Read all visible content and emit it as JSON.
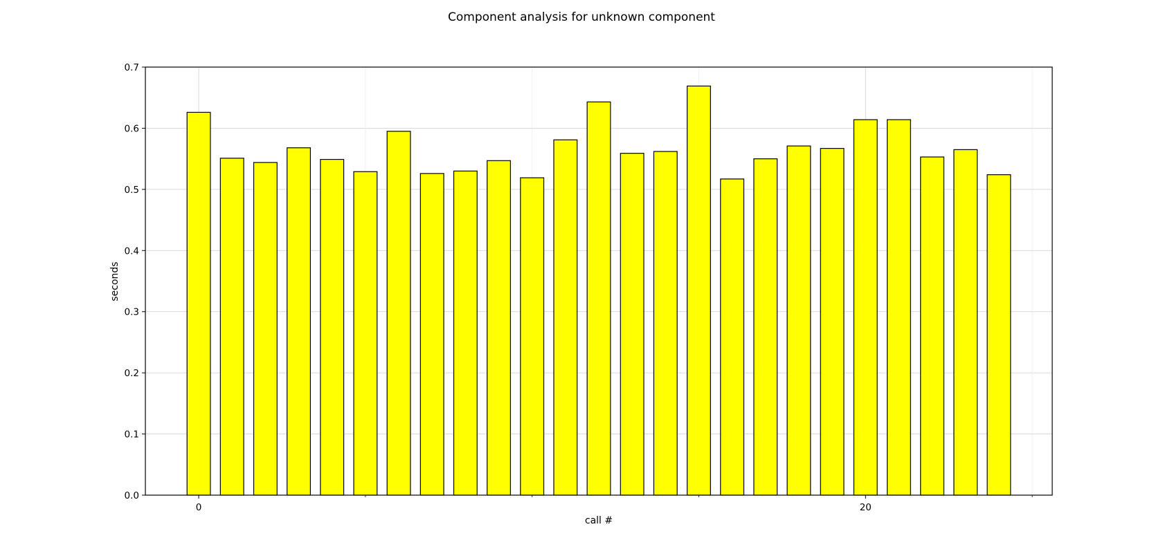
{
  "chart_data": {
    "type": "bar",
    "title": "Component analysis for unknown component",
    "xlabel": "call #",
    "ylabel": "seconds",
    "x": [
      0,
      1,
      2,
      3,
      4,
      5,
      6,
      7,
      8,
      9,
      10,
      11,
      12,
      13,
      14,
      15,
      16,
      17,
      18,
      19,
      20,
      21,
      22,
      23,
      24
    ],
    "values": [
      0.626,
      0.551,
      0.544,
      0.568,
      0.549,
      0.529,
      0.595,
      0.526,
      0.53,
      0.547,
      0.519,
      0.581,
      0.643,
      0.559,
      0.562,
      0.669,
      0.517,
      0.55,
      0.571,
      0.567,
      0.614,
      0.614,
      0.553,
      0.565,
      0.524
    ],
    "xlim": [
      -1.6,
      25.6
    ],
    "ylim": [
      0,
      0.7
    ],
    "xticks": [
      0,
      20
    ],
    "xtick_labels": [
      "0",
      "20"
    ],
    "minor_xticks": [
      5,
      10,
      15,
      25
    ],
    "yticks": [
      0.0,
      0.1,
      0.2,
      0.3,
      0.4,
      0.5,
      0.6,
      0.7
    ],
    "ytick_labels": [
      "0.0",
      "0.1",
      "0.2",
      "0.3",
      "0.4",
      "0.5",
      "0.6",
      "0.7"
    ],
    "grid": true,
    "bar_color": "#ffff00",
    "edge_color": "#000000",
    "grid_color": "#d3d3d3"
  }
}
